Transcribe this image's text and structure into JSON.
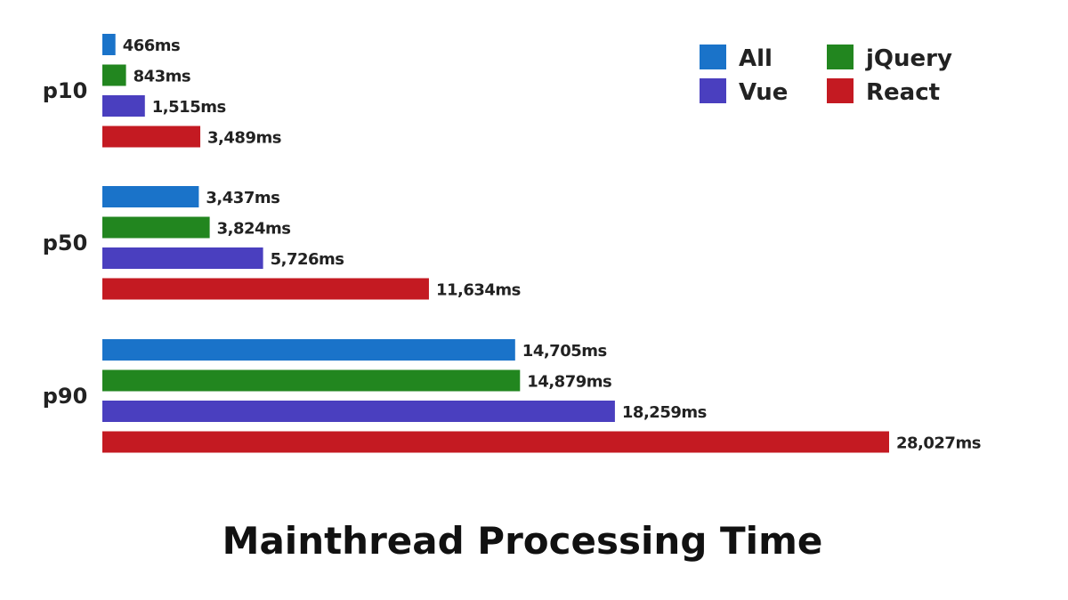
{
  "chart_data": {
    "type": "bar",
    "orientation": "horizontal",
    "title": "Mainthread Processing Time",
    "xlabel": "",
    "ylabel": "",
    "unit": "ms",
    "categories": [
      "p10",
      "p50",
      "p90"
    ],
    "series": [
      {
        "name": "All",
        "color": "#1a73c9",
        "values": [
          466,
          3437,
          14705
        ],
        "labels": [
          "466ms",
          "3,437ms",
          "14,705ms"
        ]
      },
      {
        "name": "jQuery",
        "color": "#22861f",
        "values": [
          843,
          3824,
          14879
        ],
        "labels": [
          "843ms",
          "3,824ms",
          "14,879ms"
        ]
      },
      {
        "name": "Vue",
        "color": "#4a3fbf",
        "values": [
          1515,
          5726,
          18259
        ],
        "labels": [
          "1,515ms",
          "5,726ms",
          "18,259ms"
        ]
      },
      {
        "name": "React",
        "color": "#c41a22",
        "values": [
          3489,
          11634,
          28027
        ],
        "labels": [
          "3,489ms",
          "11,634ms",
          "28,027ms"
        ]
      }
    ],
    "legend_placement": "top-right",
    "legend_order": [
      "All",
      "jQuery",
      "Vue",
      "React"
    ],
    "grid": false
  }
}
